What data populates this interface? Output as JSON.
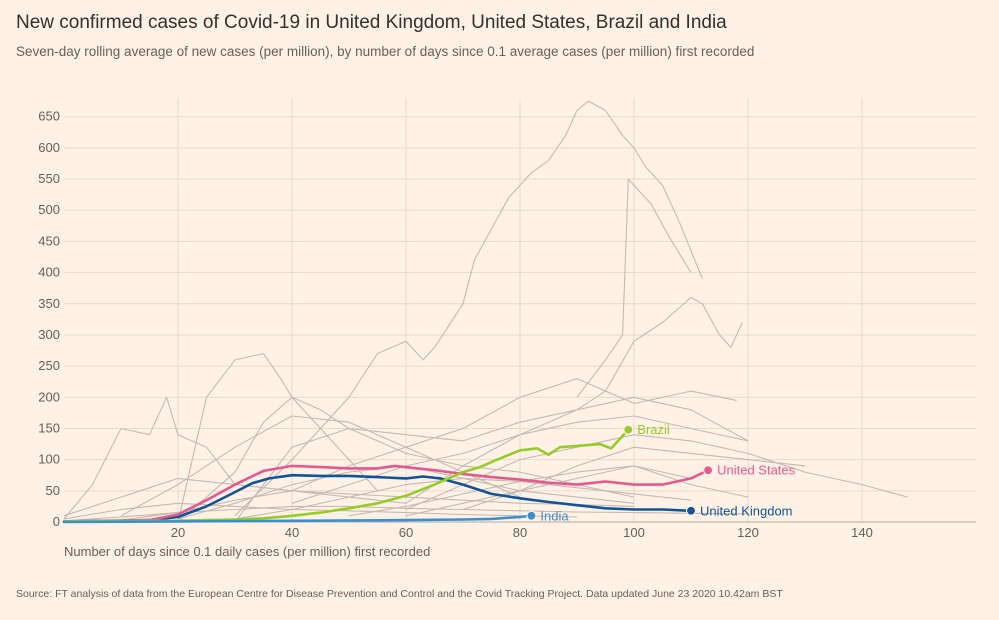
{
  "header": {
    "title": "New confirmed cases of Covid-19 in United Kingdom, United States, Brazil and India",
    "subtitle": "Seven-day rolling average of new cases (per million), by number of days since 0.1 average cases (per million) first recorded"
  },
  "footer": {
    "source": "Source: FT analysis of data from the European Centre for Disease Prevention and Control and the Covid Tracking Project. Data updated June 23 2020 10.42am BST"
  },
  "chart_data": {
    "type": "line",
    "title": "New confirmed cases of Covid-19 in United Kingdom, United States, Brazil and India",
    "xlabel": "Number of days since 0.1 daily cases (per million) first recorded",
    "ylabel": "",
    "xlim": [
      0,
      160
    ],
    "ylim": [
      0,
      680
    ],
    "x_ticks": [
      20,
      40,
      60,
      80,
      100,
      120,
      140
    ],
    "y_ticks": [
      0,
      50,
      100,
      150,
      200,
      250,
      300,
      350,
      400,
      450,
      500,
      550,
      600,
      650
    ],
    "colors": {
      "background": "#fff1e5",
      "grid": "#e6d9ce",
      "other_countries": "#c5b9b0",
      "United Kingdom": "#0f5499",
      "United States": "#e5598f",
      "Brazil": "#96cc28",
      "India": "#3a8fd0"
    },
    "highlighted": [
      {
        "name": "United Kingdom",
        "label": "United Kingdom",
        "x": [
          0,
          10,
          15,
          20,
          25,
          30,
          33,
          36,
          40,
          45,
          50,
          55,
          60,
          63,
          66,
          70,
          75,
          80,
          85,
          90,
          95,
          100,
          105,
          110
        ],
        "y": [
          1,
          2,
          3,
          8,
          25,
          48,
          62,
          70,
          75,
          74,
          74,
          72,
          70,
          73,
          70,
          60,
          45,
          38,
          32,
          27,
          22,
          20,
          20,
          18
        ]
      },
      {
        "name": "United States",
        "label": "United States",
        "x": [
          0,
          15,
          20,
          25,
          30,
          35,
          40,
          45,
          50,
          55,
          58,
          62,
          65,
          70,
          75,
          80,
          85,
          90,
          95,
          100,
          105,
          110,
          113
        ],
        "y": [
          1,
          3,
          12,
          35,
          60,
          82,
          90,
          88,
          86,
          86,
          90,
          86,
          83,
          77,
          72,
          68,
          63,
          60,
          65,
          60,
          60,
          70,
          83
        ]
      },
      {
        "name": "Brazil",
        "label": "Brazil",
        "x": [
          0,
          20,
          25,
          30,
          35,
          40,
          45,
          50,
          55,
          60,
          65,
          70,
          73,
          76,
          80,
          83,
          85,
          87,
          90,
          94,
          96,
          99
        ],
        "y": [
          1,
          2,
          3,
          4,
          6,
          10,
          15,
          22,
          30,
          42,
          60,
          80,
          88,
          100,
          115,
          118,
          108,
          120,
          122,
          125,
          118,
          148
        ]
      },
      {
        "name": "India",
        "label": "India",
        "x": [
          0,
          20,
          40,
          60,
          70,
          75,
          80,
          82
        ],
        "y": [
          0,
          1,
          2,
          3,
          4,
          5,
          8,
          10
        ]
      }
    ],
    "other_series": [
      {
        "x": [
          20,
          30,
          35,
          40,
          45,
          50,
          55,
          60,
          65,
          70,
          75,
          80,
          85,
          90,
          95,
          100
        ],
        "y": [
          0,
          80,
          160,
          200,
          180,
          150,
          130,
          110,
          100,
          90,
          85,
          80,
          70,
          60,
          50,
          40
        ]
      },
      {
        "x": [
          30,
          40,
          50,
          60,
          70,
          80,
          90,
          100,
          110,
          120
        ],
        "y": [
          0,
          120,
          150,
          140,
          130,
          160,
          180,
          200,
          180,
          130
        ]
      },
      {
        "x": [
          20,
          25,
          30,
          35,
          38,
          40,
          45,
          50,
          55
        ],
        "y": [
          0,
          200,
          260,
          270,
          230,
          200,
          150,
          100,
          50
        ]
      },
      {
        "x": [
          0,
          5,
          10,
          15,
          18,
          20,
          25,
          30
        ],
        "y": [
          5,
          60,
          150,
          140,
          200,
          140,
          120,
          60
        ]
      },
      {
        "x": [
          30,
          40,
          50,
          55,
          60,
          63,
          65,
          70,
          72,
          75,
          78,
          80,
          82,
          85,
          88,
          90,
          92,
          95,
          98,
          100,
          102,
          105,
          108,
          112
        ],
        "y": [
          10,
          100,
          200,
          270,
          290,
          260,
          280,
          350,
          420,
          470,
          520,
          540,
          560,
          580,
          620,
          660,
          675,
          660,
          620,
          600,
          570,
          540,
          480,
          390
        ]
      },
      {
        "x": [
          90,
          95,
          98,
          99,
          100,
          103,
          106,
          110
        ],
        "y": [
          200,
          260,
          300,
          550,
          540,
          510,
          460,
          400
        ]
      },
      {
        "x": [
          60,
          70,
          80,
          90,
          95,
          100,
          105,
          110,
          112,
          115,
          117,
          119
        ],
        "y": [
          30,
          90,
          140,
          180,
          210,
          290,
          320,
          360,
          350,
          300,
          280,
          320
        ]
      },
      {
        "x": [
          40,
          50,
          60,
          70,
          80,
          90,
          100,
          110,
          118
        ],
        "y": [
          50,
          90,
          120,
          150,
          200,
          230,
          190,
          210,
          195
        ]
      },
      {
        "x": [
          60,
          70,
          80,
          90,
          100,
          110,
          120,
          130,
          140,
          148
        ],
        "y": [
          20,
          60,
          100,
          120,
          140,
          130,
          110,
          80,
          60,
          40
        ]
      },
      {
        "x": [
          10,
          20,
          30,
          40,
          50,
          60,
          70,
          80
        ],
        "y": [
          10,
          60,
          120,
          170,
          160,
          120,
          80,
          40
        ]
      },
      {
        "x": [
          40,
          50,
          60,
          70,
          80,
          90,
          100,
          110,
          120
        ],
        "y": [
          30,
          60,
          90,
          110,
          140,
          160,
          170,
          150,
          130
        ]
      },
      {
        "x": [
          0,
          10,
          20,
          30,
          40,
          50,
          60
        ],
        "y": [
          10,
          40,
          70,
          60,
          50,
          40,
          30
        ]
      },
      {
        "x": [
          20,
          30,
          40,
          50,
          60,
          70,
          80,
          90,
          100
        ],
        "y": [
          5,
          30,
          60,
          80,
          90,
          70,
          50,
          40,
          30
        ]
      },
      {
        "x": [
          60,
          70,
          80,
          90,
          100,
          110,
          120
        ],
        "y": [
          10,
          30,
          50,
          70,
          90,
          60,
          40
        ]
      },
      {
        "x": [
          0,
          10,
          20,
          30,
          40,
          50,
          60,
          70,
          80,
          90,
          100,
          110,
          120
        ],
        "y": [
          2,
          8,
          15,
          20,
          25,
          25,
          22,
          20,
          18,
          16,
          15,
          14,
          13
        ]
      },
      {
        "x": [
          10,
          20,
          30,
          40,
          50,
          60,
          70,
          80,
          90,
          100
        ],
        "y": [
          3,
          15,
          35,
          50,
          45,
          40,
          35,
          30,
          28,
          25
        ]
      },
      {
        "x": [
          30,
          40,
          50,
          60,
          70,
          80,
          90,
          100,
          110
        ],
        "y": [
          5,
          20,
          40,
          60,
          70,
          65,
          55,
          45,
          35
        ]
      },
      {
        "x": [
          50,
          60,
          70,
          80,
          90,
          100,
          110
        ],
        "y": [
          10,
          25,
          45,
          65,
          80,
          90,
          70
        ]
      },
      {
        "x": [
          0,
          10,
          20,
          30,
          40,
          50,
          60,
          70,
          80,
          90
        ],
        "y": [
          5,
          20,
          30,
          25,
          20,
          18,
          15,
          12,
          10,
          8
        ]
      },
      {
        "x": [
          70,
          80,
          90,
          100,
          110,
          120,
          130
        ],
        "y": [
          20,
          50,
          90,
          120,
          110,
          100,
          90
        ]
      }
    ]
  }
}
